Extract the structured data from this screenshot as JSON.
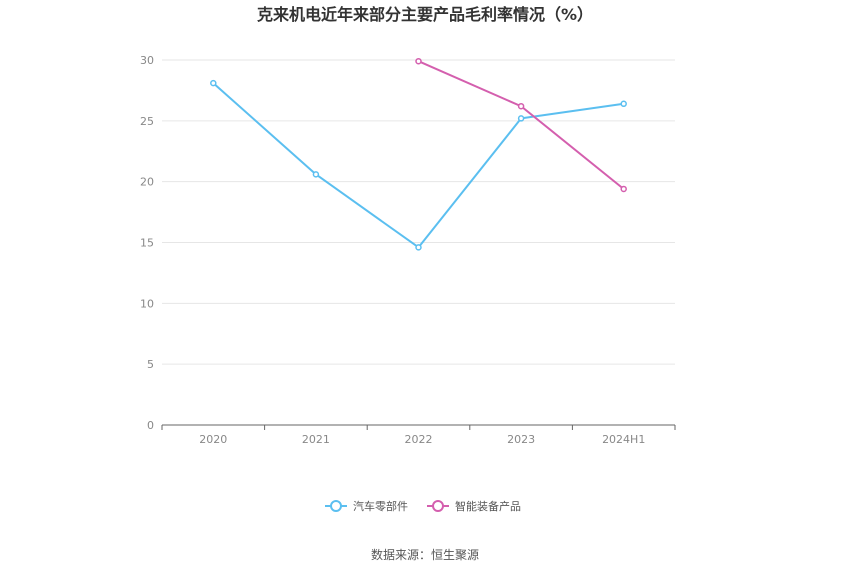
{
  "source_label": "数据来源：恒生聚源",
  "chart_data": {
    "type": "line",
    "title": "克来机电近年来部分主要产品毛利率情况（%）",
    "categories": [
      "2020",
      "2021",
      "2022",
      "2023",
      "2024H1"
    ],
    "ylim": [
      0,
      30
    ],
    "yticks": [
      0,
      5,
      10,
      15,
      20,
      25,
      30
    ],
    "grid": true,
    "legend_position": "bottom-center",
    "series": [
      {
        "name": "汽车零部件",
        "color": "#5bbff0",
        "values": [
          28.1,
          20.6,
          14.6,
          25.2,
          26.4
        ]
      },
      {
        "name": "智能装备产品",
        "color": "#d45fae",
        "values": [
          null,
          null,
          29.9,
          26.2,
          19.4
        ]
      }
    ]
  }
}
